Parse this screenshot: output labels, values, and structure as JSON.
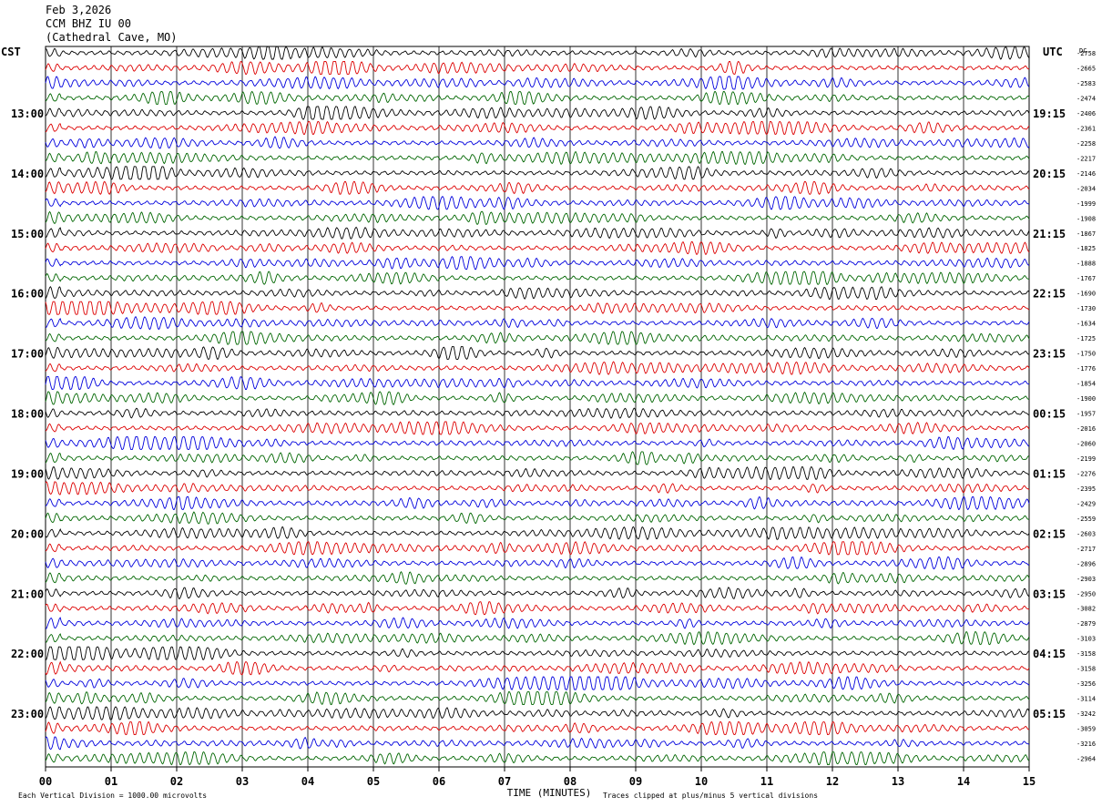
{
  "header": {
    "date": "Feb 3,2026",
    "station": "CCM BHZ IU 00",
    "location": "(Cathedral Cave, MO)"
  },
  "chart_data": {
    "type": "line",
    "title": "",
    "xlabel": "TIME (MINUTES)",
    "ylabel": "",
    "left_zone_label": "CST",
    "right_zone_label": "UTC",
    "dc_label": "DC",
    "x_ticks": [
      "00",
      "01",
      "02",
      "03",
      "04",
      "05",
      "06",
      "07",
      "08",
      "09",
      "10",
      "11",
      "12",
      "13",
      "14",
      "15"
    ],
    "xlim": [
      0,
      15
    ],
    "trace_colors": [
      "#000000",
      "#dd0000",
      "#0000dd",
      "#006600"
    ],
    "trace_count": 48,
    "left_time_labels": [
      "13:00",
      "14:00",
      "15:00",
      "16:00",
      "17:00",
      "18:00",
      "19:00",
      "20:00",
      "21:00",
      "22:00",
      "23:00"
    ],
    "right_time_labels": [
      "19:15",
      "20:15",
      "21:15",
      "22:15",
      "23:15",
      "00:15",
      "01:15",
      "02:15",
      "03:15",
      "04:15",
      "05:15"
    ],
    "time_label_start_trace": 4,
    "time_label_every": 4,
    "dc_offsets": [
      "-2758",
      "-2665",
      "-2583",
      "-2474",
      "-2406",
      "-2361",
      "-2258",
      "-2217",
      "-2146",
      "-2034",
      "-1999",
      "-1908",
      "-1867",
      "-1825",
      "-1888",
      "-1767",
      "-1690",
      "-1730",
      "-1634",
      "-1725",
      "-1750",
      "-1776",
      "-1854",
      "-1900",
      "-1957",
      "-2016",
      "-2060",
      "-2199",
      "-2276",
      "-2395",
      "-2429",
      "-2559",
      "-2603",
      "-2717",
      "-2896",
      "-2903",
      "-2950",
      "-3082",
      "-2879",
      "-3103",
      "-3158",
      "-3158",
      "-3256",
      "-3114",
      "-3242",
      "-3059",
      "-3216",
      "-2964"
    ],
    "footer_left": "Each Vertical Division = 1000.00 microvolts",
    "footer_right": "Traces clipped at plus/minus 5 vertical divisions"
  }
}
